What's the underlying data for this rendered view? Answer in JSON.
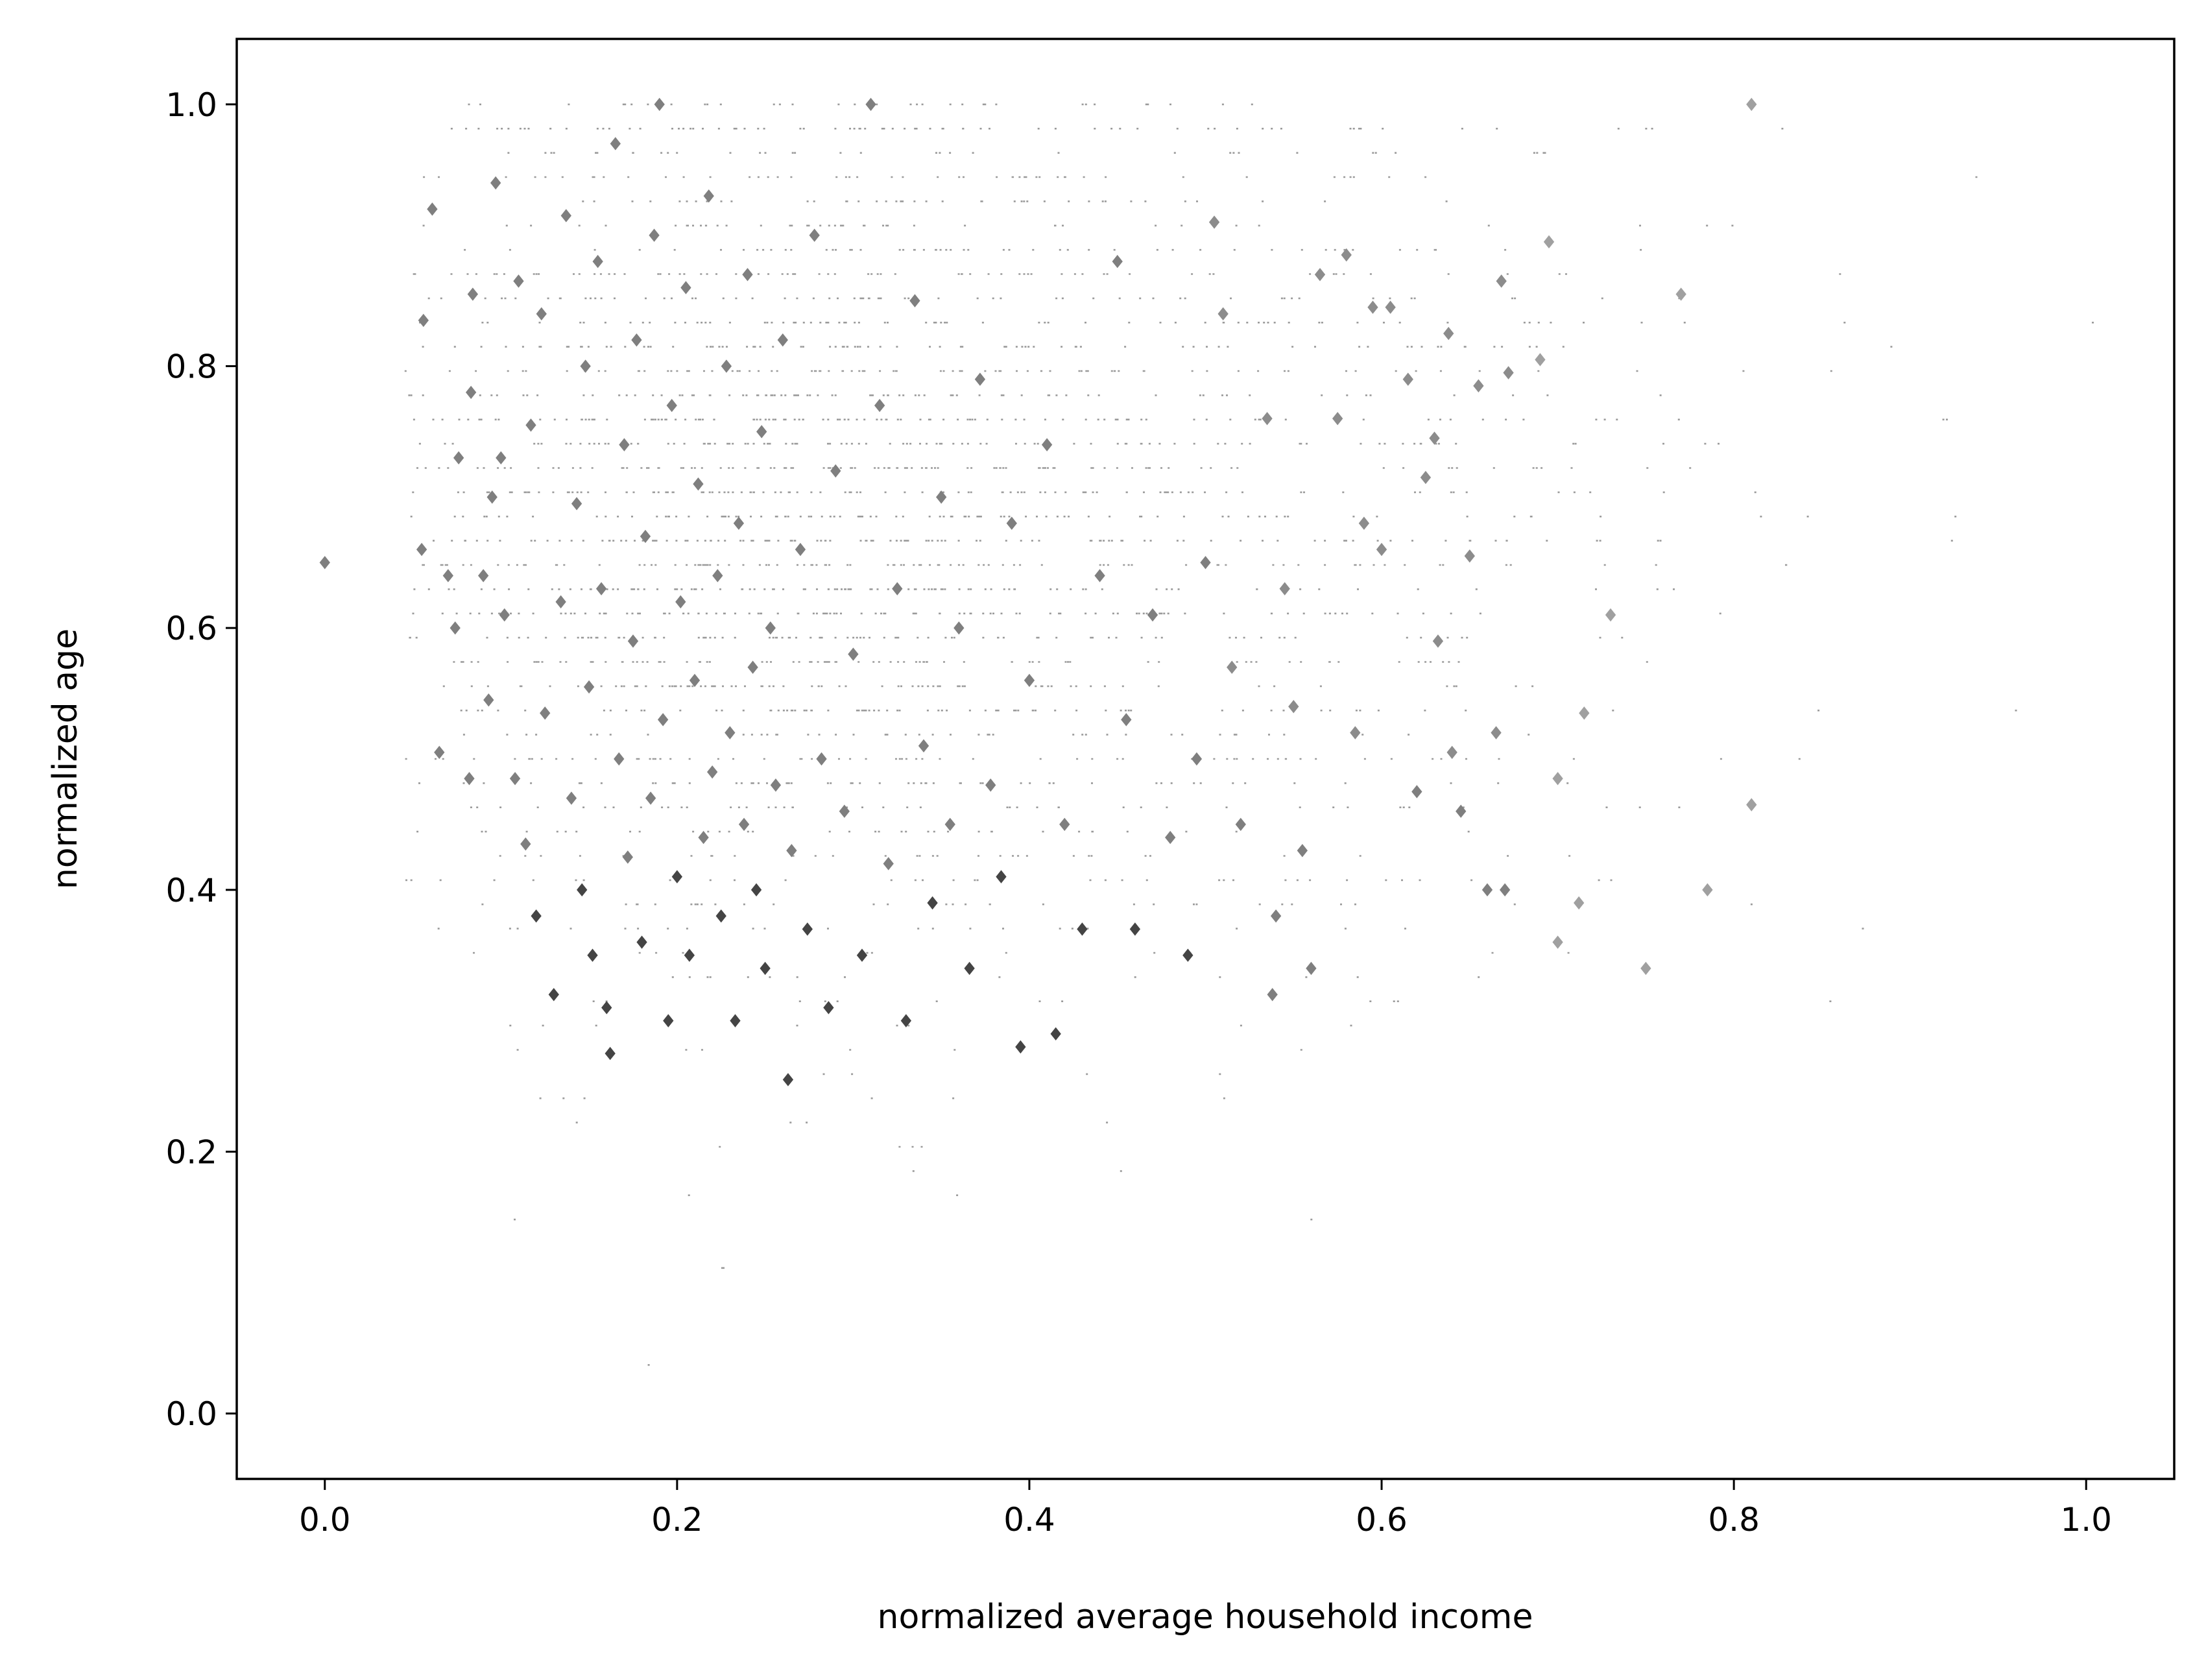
{
  "chart_data": {
    "type": "scatter",
    "title": "",
    "xlabel": "normalized average household income",
    "ylabel": "normalized age",
    "xlim": [
      -0.05,
      1.05
    ],
    "ylim": [
      -0.05,
      1.05
    ],
    "xticks": [
      0.0,
      0.2,
      0.4,
      0.6,
      0.8,
      1.0
    ],
    "xtick_labels": [
      "0.0",
      "0.2",
      "0.4",
      "0.6",
      "0.8",
      "1.0"
    ],
    "yticks": [
      0.0,
      0.2,
      0.4,
      0.6,
      0.8,
      1.0
    ],
    "ytick_labels": [
      "0.0",
      "0.2",
      "0.4",
      "0.6",
      "0.8",
      "1.0"
    ],
    "grid": false,
    "legend": "none",
    "colors": {
      "dense_marker": "#7f7f7f",
      "dark_marker": "#444444",
      "light_marker": "#bbbbbb",
      "axes": "#000000"
    },
    "series": [
      {
        "marker": "diamond",
        "points": [
          [
            0.0,
            0.65
          ],
          [
            0.055,
            0.66
          ],
          [
            0.056,
            0.835
          ],
          [
            0.061,
            0.92
          ],
          [
            0.065,
            0.505
          ],
          [
            0.07,
            0.64
          ],
          [
            0.074,
            0.6
          ],
          [
            0.076,
            0.73
          ],
          [
            0.082,
            0.485
          ],
          [
            0.083,
            0.78
          ],
          [
            0.084,
            0.855
          ],
          [
            0.09,
            0.64
          ],
          [
            0.093,
            0.545
          ],
          [
            0.095,
            0.7
          ],
          [
            0.097,
            0.94
          ],
          [
            0.1,
            0.73
          ],
          [
            0.102,
            0.61
          ],
          [
            0.108,
            0.485
          ],
          [
            0.11,
            0.865
          ],
          [
            0.114,
            0.435
          ],
          [
            0.117,
            0.755
          ],
          [
            0.12,
            0.38
          ],
          [
            0.123,
            0.84
          ],
          [
            0.125,
            0.535
          ],
          [
            0.13,
            0.32
          ],
          [
            0.134,
            0.62
          ],
          [
            0.137,
            0.915
          ],
          [
            0.14,
            0.47
          ],
          [
            0.143,
            0.695
          ],
          [
            0.146,
            0.4
          ],
          [
            0.148,
            0.8
          ],
          [
            0.15,
            0.555
          ],
          [
            0.152,
            0.35
          ],
          [
            0.155,
            0.88
          ],
          [
            0.157,
            0.63
          ],
          [
            0.16,
            0.31
          ],
          [
            0.162,
            0.275
          ],
          [
            0.165,
            0.97
          ],
          [
            0.167,
            0.5
          ],
          [
            0.17,
            0.74
          ],
          [
            0.172,
            0.425
          ],
          [
            0.175,
            0.59
          ],
          [
            0.177,
            0.82
          ],
          [
            0.18,
            0.36
          ],
          [
            0.182,
            0.67
          ],
          [
            0.185,
            0.47
          ],
          [
            0.187,
            0.9
          ],
          [
            0.19,
            1.0
          ],
          [
            0.192,
            0.53
          ],
          [
            0.195,
            0.3
          ],
          [
            0.197,
            0.77
          ],
          [
            0.2,
            0.41
          ],
          [
            0.202,
            0.62
          ],
          [
            0.205,
            0.86
          ],
          [
            0.207,
            0.35
          ],
          [
            0.21,
            0.56
          ],
          [
            0.212,
            0.71
          ],
          [
            0.215,
            0.44
          ],
          [
            0.218,
            0.93
          ],
          [
            0.22,
            0.49
          ],
          [
            0.223,
            0.64
          ],
          [
            0.225,
            0.38
          ],
          [
            0.228,
            0.8
          ],
          [
            0.23,
            0.52
          ],
          [
            0.233,
            0.3
          ],
          [
            0.235,
            0.68
          ],
          [
            0.238,
            0.45
          ],
          [
            0.24,
            0.87
          ],
          [
            0.243,
            0.57
          ],
          [
            0.245,
            0.4
          ],
          [
            0.248,
            0.75
          ],
          [
            0.25,
            0.34
          ],
          [
            0.253,
            0.6
          ],
          [
            0.256,
            0.48
          ],
          [
            0.26,
            0.82
          ],
          [
            0.263,
            0.255
          ],
          [
            0.265,
            0.43
          ],
          [
            0.27,
            0.66
          ],
          [
            0.274,
            0.37
          ],
          [
            0.278,
            0.9
          ],
          [
            0.282,
            0.5
          ],
          [
            0.286,
            0.31
          ],
          [
            0.29,
            0.72
          ],
          [
            0.295,
            0.46
          ],
          [
            0.3,
            0.58
          ],
          [
            0.305,
            0.35
          ],
          [
            0.31,
            1.0
          ],
          [
            0.315,
            0.77
          ],
          [
            0.32,
            0.42
          ],
          [
            0.325,
            0.63
          ],
          [
            0.33,
            0.3
          ],
          [
            0.335,
            0.85
          ],
          [
            0.34,
            0.51
          ],
          [
            0.345,
            0.39
          ],
          [
            0.35,
            0.7
          ],
          [
            0.355,
            0.45
          ],
          [
            0.36,
            0.6
          ],
          [
            0.366,
            0.34
          ],
          [
            0.372,
            0.79
          ],
          [
            0.378,
            0.48
          ],
          [
            0.384,
            0.41
          ],
          [
            0.39,
            0.68
          ],
          [
            0.395,
            0.28
          ],
          [
            0.4,
            0.56
          ],
          [
            0.41,
            0.74
          ],
          [
            0.415,
            0.29
          ],
          [
            0.42,
            0.45
          ],
          [
            0.43,
            0.37
          ],
          [
            0.44,
            0.64
          ],
          [
            0.45,
            0.88
          ],
          [
            0.455,
            0.53
          ],
          [
            0.46,
            0.37
          ],
          [
            0.47,
            0.61
          ],
          [
            0.48,
            0.44
          ],
          [
            0.49,
            0.35
          ],
          [
            0.495,
            0.5
          ],
          [
            0.5,
            0.65
          ],
          [
            0.505,
            0.91
          ],
          [
            0.51,
            0.84
          ],
          [
            0.515,
            0.57
          ],
          [
            0.52,
            0.45
          ],
          [
            0.535,
            0.76
          ],
          [
            0.538,
            0.32
          ],
          [
            0.54,
            0.38
          ],
          [
            0.545,
            0.63
          ],
          [
            0.55,
            0.54
          ],
          [
            0.555,
            0.43
          ],
          [
            0.56,
            0.34
          ],
          [
            0.565,
            0.87
          ],
          [
            0.575,
            0.76
          ],
          [
            0.58,
            0.885
          ],
          [
            0.585,
            0.52
          ],
          [
            0.59,
            0.68
          ],
          [
            0.595,
            0.845
          ],
          [
            0.6,
            0.66
          ],
          [
            0.605,
            0.845
          ],
          [
            0.615,
            0.79
          ],
          [
            0.62,
            0.475
          ],
          [
            0.625,
            0.715
          ],
          [
            0.63,
            0.745
          ],
          [
            0.632,
            0.59
          ],
          [
            0.638,
            0.825
          ],
          [
            0.64,
            0.505
          ],
          [
            0.645,
            0.46
          ],
          [
            0.65,
            0.655
          ],
          [
            0.655,
            0.785
          ],
          [
            0.66,
            0.4
          ],
          [
            0.665,
            0.52
          ],
          [
            0.668,
            0.865
          ],
          [
            0.67,
            0.4
          ],
          [
            0.672,
            0.795
          ],
          [
            0.69,
            0.805
          ],
          [
            0.695,
            0.895
          ],
          [
            0.7,
            0.36
          ],
          [
            0.7,
            0.485
          ],
          [
            0.712,
            0.39
          ],
          [
            0.715,
            0.535
          ],
          [
            0.73,
            0.61
          ],
          [
            0.75,
            0.34
          ],
          [
            0.77,
            0.855
          ],
          [
            0.785,
            0.4
          ],
          [
            0.81,
            1.0
          ],
          [
            0.81,
            0.465
          ]
        ]
      }
    ]
  }
}
